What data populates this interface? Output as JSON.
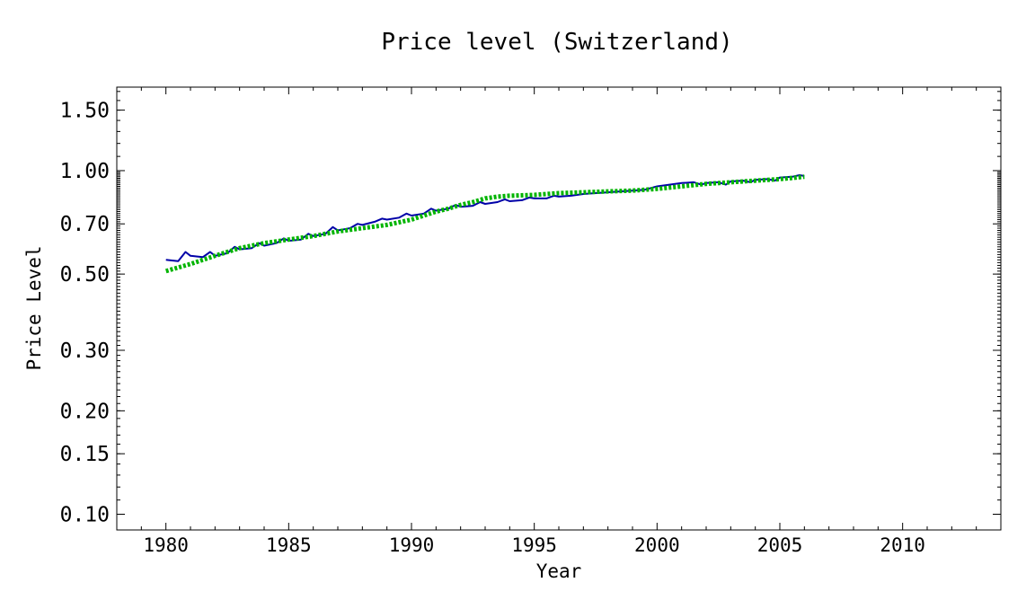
{
  "chart_data": {
    "type": "line",
    "title": "Price level (Switzerland)",
    "xlabel": "Year",
    "ylabel": "Price Level",
    "y_scale": "log",
    "xlim": [
      1978,
      2014
    ],
    "ylim": [
      0.09,
      1.75
    ],
    "x_ticks": [
      1980,
      1985,
      1990,
      1995,
      2000,
      2005,
      2010
    ],
    "x_tick_labels": [
      "1980",
      "1985",
      "1990",
      "1995",
      "2000",
      "2005",
      "2010"
    ],
    "y_ticks": [
      0.1,
      0.15,
      0.2,
      0.3,
      0.5,
      0.7,
      1.0,
      1.5
    ],
    "y_tick_labels": [
      "0.10",
      "0.15",
      "0.20",
      "0.30",
      "0.50",
      "0.70",
      "1.00",
      "1.50"
    ],
    "grid": false,
    "series": [
      {
        "style": "solid",
        "color": "#0000a8",
        "points": [
          [
            1980.0,
            0.55
          ],
          [
            1980.5,
            0.545
          ],
          [
            1980.8,
            0.58
          ],
          [
            1981.0,
            0.565
          ],
          [
            1981.5,
            0.56
          ],
          [
            1981.8,
            0.58
          ],
          [
            1982.0,
            0.565
          ],
          [
            1982.5,
            0.575
          ],
          [
            1982.8,
            0.6
          ],
          [
            1983.0,
            0.59
          ],
          [
            1983.5,
            0.595
          ],
          [
            1983.8,
            0.615
          ],
          [
            1984.0,
            0.605
          ],
          [
            1984.5,
            0.615
          ],
          [
            1984.8,
            0.635
          ],
          [
            1985.0,
            0.625
          ],
          [
            1985.5,
            0.63
          ],
          [
            1985.8,
            0.655
          ],
          [
            1986.0,
            0.645
          ],
          [
            1986.5,
            0.655
          ],
          [
            1986.8,
            0.685
          ],
          [
            1987.0,
            0.67
          ],
          [
            1987.5,
            0.68
          ],
          [
            1987.8,
            0.7
          ],
          [
            1988.0,
            0.695
          ],
          [
            1988.5,
            0.71
          ],
          [
            1988.8,
            0.725
          ],
          [
            1989.0,
            0.72
          ],
          [
            1989.5,
            0.73
          ],
          [
            1989.8,
            0.75
          ],
          [
            1990.0,
            0.74
          ],
          [
            1990.5,
            0.75
          ],
          [
            1990.8,
            0.775
          ],
          [
            1991.0,
            0.765
          ],
          [
            1991.5,
            0.775
          ],
          [
            1991.8,
            0.795
          ],
          [
            1992.0,
            0.785
          ],
          [
            1992.5,
            0.79
          ],
          [
            1992.8,
            0.81
          ],
          [
            1993.0,
            0.8
          ],
          [
            1993.5,
            0.81
          ],
          [
            1993.8,
            0.825
          ],
          [
            1994.0,
            0.815
          ],
          [
            1994.5,
            0.82
          ],
          [
            1994.8,
            0.835
          ],
          [
            1995.0,
            0.83
          ],
          [
            1995.5,
            0.83
          ],
          [
            1995.8,
            0.845
          ],
          [
            1996.0,
            0.84
          ],
          [
            1996.5,
            0.845
          ],
          [
            1997.0,
            0.855
          ],
          [
            1997.5,
            0.86
          ],
          [
            1998.0,
            0.865
          ],
          [
            1998.5,
            0.87
          ],
          [
            1999.0,
            0.875
          ],
          [
            1999.5,
            0.88
          ],
          [
            2000.0,
            0.9
          ],
          [
            2000.5,
            0.91
          ],
          [
            2001.0,
            0.92
          ],
          [
            2001.5,
            0.925
          ],
          [
            2001.8,
            0.91
          ],
          [
            2002.0,
            0.92
          ],
          [
            2002.5,
            0.925
          ],
          [
            2002.8,
            0.91
          ],
          [
            2003.0,
            0.93
          ],
          [
            2003.5,
            0.935
          ],
          [
            2003.8,
            0.925
          ],
          [
            2004.0,
            0.94
          ],
          [
            2004.5,
            0.945
          ],
          [
            2004.8,
            0.935
          ],
          [
            2005.0,
            0.955
          ],
          [
            2005.5,
            0.96
          ],
          [
            2005.8,
            0.97
          ],
          [
            2006.0,
            0.965
          ]
        ]
      },
      {
        "style": "dotted",
        "color": "#00b400",
        "points": [
          [
            1980.0,
            0.51
          ],
          [
            1981.0,
            0.535
          ],
          [
            1982.0,
            0.565
          ],
          [
            1983.0,
            0.595
          ],
          [
            1984.0,
            0.615
          ],
          [
            1985.0,
            0.63
          ],
          [
            1986.0,
            0.645
          ],
          [
            1987.0,
            0.665
          ],
          [
            1988.0,
            0.68
          ],
          [
            1989.0,
            0.695
          ],
          [
            1990.0,
            0.72
          ],
          [
            1990.5,
            0.74
          ],
          [
            1991.0,
            0.76
          ],
          [
            1991.5,
            0.775
          ],
          [
            1992.0,
            0.795
          ],
          [
            1992.5,
            0.81
          ],
          [
            1993.0,
            0.83
          ],
          [
            1993.5,
            0.84
          ],
          [
            1994.0,
            0.845
          ],
          [
            1995.0,
            0.85
          ],
          [
            1996.0,
            0.86
          ],
          [
            1997.0,
            0.865
          ],
          [
            1998.0,
            0.87
          ],
          [
            1999.0,
            0.875
          ],
          [
            2000.0,
            0.885
          ],
          [
            2001.0,
            0.9
          ],
          [
            2002.0,
            0.915
          ],
          [
            2003.0,
            0.925
          ],
          [
            2004.0,
            0.935
          ],
          [
            2005.0,
            0.945
          ],
          [
            2006.0,
            0.96
          ]
        ]
      }
    ]
  }
}
